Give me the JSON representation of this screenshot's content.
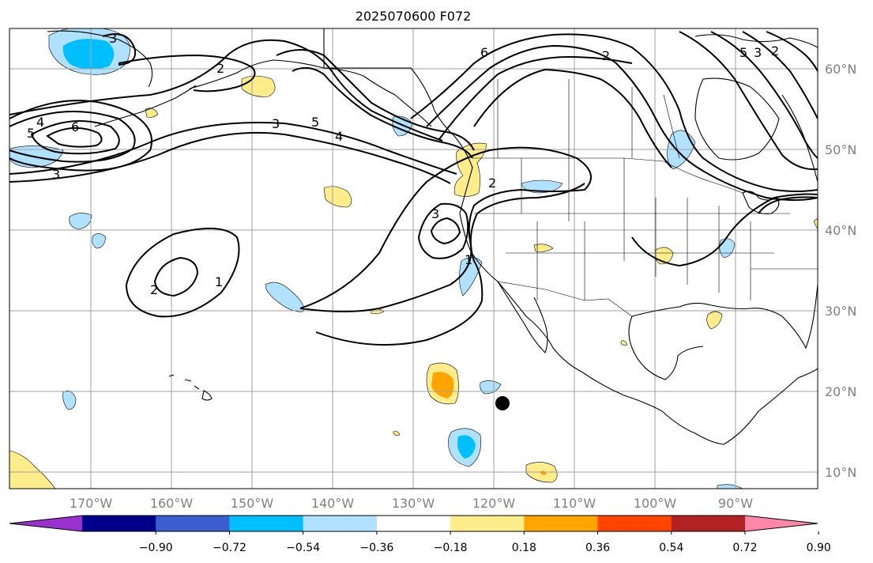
{
  "title": "2025070600 F072",
  "map": {
    "lat_labels": [
      "60°N",
      "50°N",
      "40°N",
      "30°N",
      "20°N",
      "10°N"
    ],
    "lon_labels": [
      "170°W",
      "160°W",
      "150°W",
      "140°W",
      "130°W",
      "120°W",
      "110°W",
      "100°W",
      "90°W"
    ],
    "contour_labels": [
      "3",
      "2",
      "4",
      "5",
      "6",
      "3",
      "5",
      "4",
      "3",
      "6",
      "2",
      "2",
      "3",
      "2",
      "1",
      "1",
      "2",
      "3",
      "5"
    ],
    "marker": "black-dot"
  },
  "colorbar": {
    "colors": [
      "#9b30d0",
      "#00008b",
      "#3a5fcd",
      "#00bfff",
      "#b0e2ff",
      "#ffffff",
      "#ffec8b",
      "#ffa500",
      "#ff4500",
      "#b22222",
      "#ff88aa"
    ],
    "tick_labels": [
      "−0.90",
      "−0.72",
      "−0.54",
      "−0.36",
      "−0.18",
      "0.18",
      "0.36",
      "0.54",
      "0.72",
      "0.90"
    ]
  }
}
